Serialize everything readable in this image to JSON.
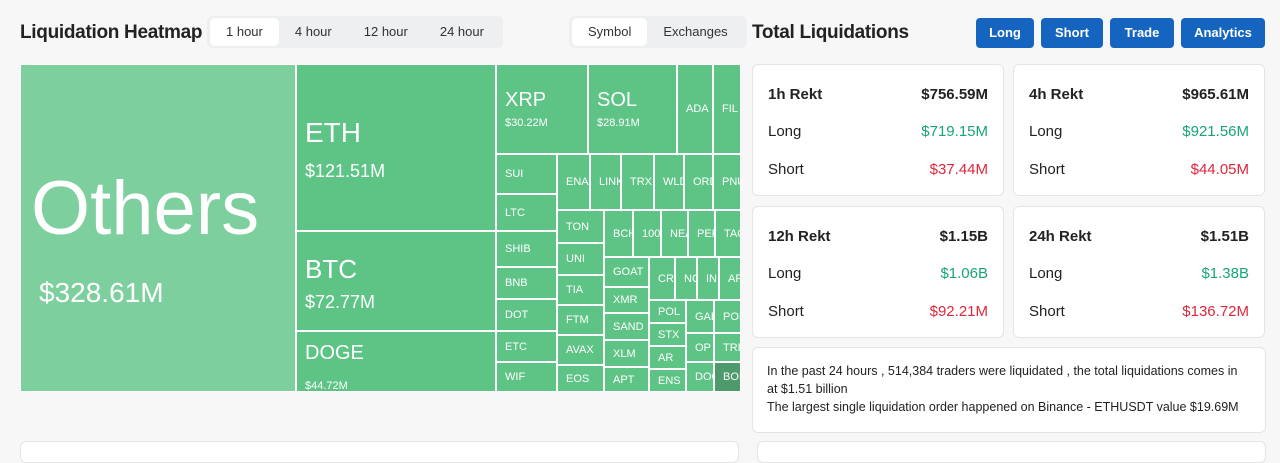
{
  "header": {
    "title": "Liquidation Heatmap",
    "time_tabs": [
      "1 hour",
      "4 hour",
      "12 hour",
      "24 hour"
    ],
    "view_tabs": [
      "Symbol",
      "Exchanges"
    ]
  },
  "treemap": {
    "cells": [
      {
        "label": "Others",
        "value": "$328.61M"
      },
      {
        "label": "ETH",
        "value": "$121.51M"
      },
      {
        "label": "BTC",
        "value": "$72.77M"
      },
      {
        "label": "DOGE",
        "value": "$44.72M"
      },
      {
        "label": "XRP",
        "value": "$30.22M"
      },
      {
        "label": "SOL",
        "value": "$28.91M"
      },
      {
        "label": "ADA"
      },
      {
        "label": "FIL"
      },
      {
        "label": "SUI"
      },
      {
        "label": "LTC"
      },
      {
        "label": "SHIB"
      },
      {
        "label": "BNB"
      },
      {
        "label": "DOT"
      },
      {
        "label": "ETC"
      },
      {
        "label": "WIF"
      },
      {
        "label": "ENA"
      },
      {
        "label": "LINK"
      },
      {
        "label": "TRX"
      },
      {
        "label": "WLD"
      },
      {
        "label": "ORD"
      },
      {
        "label": "PNU"
      },
      {
        "label": "TON"
      },
      {
        "label": "UNI"
      },
      {
        "label": "TIA"
      },
      {
        "label": "FTM"
      },
      {
        "label": "AVAX"
      },
      {
        "label": "EOS"
      },
      {
        "label": "BCH"
      },
      {
        "label": "100"
      },
      {
        "label": "NEA"
      },
      {
        "label": "PEP"
      },
      {
        "label": "TAO"
      },
      {
        "label": "GOAT"
      },
      {
        "label": "XMR"
      },
      {
        "label": "SAND"
      },
      {
        "label": "XLM"
      },
      {
        "label": "APT"
      },
      {
        "label": "CRV"
      },
      {
        "label": "NO"
      },
      {
        "label": "IN"
      },
      {
        "label": "AR"
      },
      {
        "label": "POL"
      },
      {
        "label": "STX"
      },
      {
        "label": "AR"
      },
      {
        "label": "ENS"
      },
      {
        "label": "GAL"
      },
      {
        "label": "POI"
      },
      {
        "label": "OP"
      },
      {
        "label": "TRE"
      },
      {
        "label": "DOG"
      },
      {
        "label": "BOI"
      }
    ]
  },
  "panel": {
    "title": "Total Liquidations",
    "buttons": [
      "Long",
      "Short",
      "Trade",
      "Analytics"
    ],
    "cards": [
      {
        "title": "1h Rekt",
        "total": "$756.59M",
        "long_label": "Long",
        "long": "$719.15M",
        "short_label": "Short",
        "short": "$37.44M"
      },
      {
        "title": "4h Rekt",
        "total": "$965.61M",
        "long_label": "Long",
        "long": "$921.56M",
        "short_label": "Short",
        "short": "$44.05M"
      },
      {
        "title": "12h Rekt",
        "total": "$1.15B",
        "long_label": "Long",
        "long": "$1.06B",
        "short_label": "Short",
        "short": "$92.21M"
      },
      {
        "title": "24h Rekt",
        "total": "$1.51B",
        "long_label": "Long",
        "long": "$1.38B",
        "short_label": "Short",
        "short": "$136.72M"
      }
    ],
    "summary": [
      "In the past 24 hours , 514,384 traders were liquidated , the total liquidations comes in at $1.51 billion",
      "The largest single liquidation order happened on Binance - ETHUSDT value $19.69M"
    ]
  }
}
